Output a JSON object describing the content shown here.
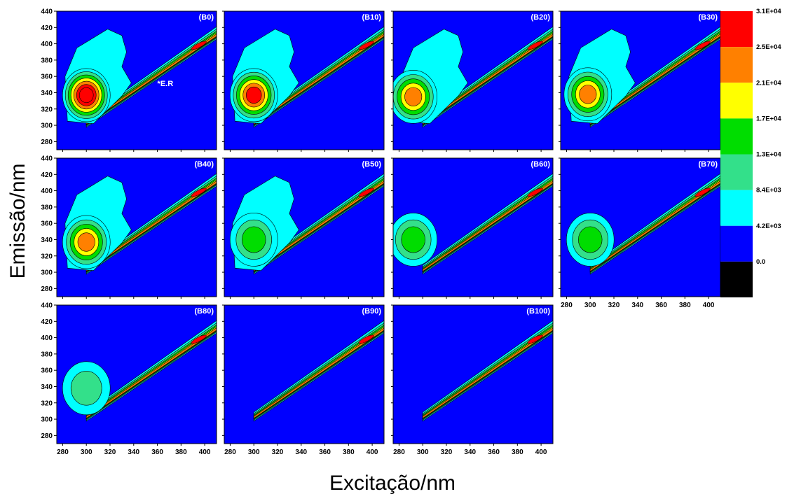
{
  "chart_data": {
    "type": "heatmap",
    "subtype": "EEM contour small-multiples",
    "xlabel": "Excitação/nm",
    "ylabel": "Emissão/nm",
    "xlim": [
      275,
      410
    ],
    "ylim": [
      270,
      440
    ],
    "x_ticks": [
      "280",
      "300",
      "320",
      "340",
      "360",
      "380",
      "400"
    ],
    "y_ticks": [
      "280",
      "300",
      "320",
      "340",
      "360",
      "380",
      "400",
      "420",
      "440"
    ],
    "colorbar": {
      "labels": [
        "3.1E+04",
        "2.5E+04",
        "2.1E+04",
        "1.7E+04",
        "1.3E+04",
        "8.4E+03",
        "4.2E+03",
        "0.0"
      ],
      "colors": [
        "#ff0000",
        "#ff8000",
        "#ffff00",
        "#00dd00",
        "#33e08a",
        "#00ffff",
        "#0000ff",
        "#000000"
      ]
    },
    "panels": [
      {
        "label": "(B0)",
        "peak_ex": 300,
        "peak_em": 337,
        "peak_level": 7,
        "cloud": true,
        "annotation": "*E.R"
      },
      {
        "label": "(B10)",
        "peak_ex": 300,
        "peak_em": 337,
        "peak_level": 6,
        "cloud": true
      },
      {
        "label": "(B20)",
        "peak_ex": 292,
        "peak_em": 335,
        "peak_level": 5,
        "cloud": true
      },
      {
        "label": "(B30)",
        "peak_ex": 298,
        "peak_em": 338,
        "peak_level": 5,
        "cloud": true
      },
      {
        "label": "(B40)",
        "peak_ex": 300,
        "peak_em": 337,
        "peak_level": 5,
        "cloud": true
      },
      {
        "label": "(B50)",
        "peak_ex": 300,
        "peak_em": 340,
        "peak_level": 3,
        "cloud": true
      },
      {
        "label": "(B60)",
        "peak_ex": 292,
        "peak_em": 340,
        "peak_level": 3,
        "cloud": false
      },
      {
        "label": "(B70)",
        "peak_ex": 300,
        "peak_em": 340,
        "peak_level": 3,
        "cloud": false
      },
      {
        "label": "(B80)",
        "peak_ex": 300,
        "peak_em": 338,
        "peak_level": 2,
        "cloud": false
      },
      {
        "label": "(B90)",
        "peak_ex": 0,
        "peak_em": 0,
        "peak_level": 0,
        "cloud": false
      },
      {
        "label": "(B100)",
        "peak_ex": 0,
        "peak_em": 0,
        "peak_level": 0,
        "cloud": false
      }
    ]
  }
}
